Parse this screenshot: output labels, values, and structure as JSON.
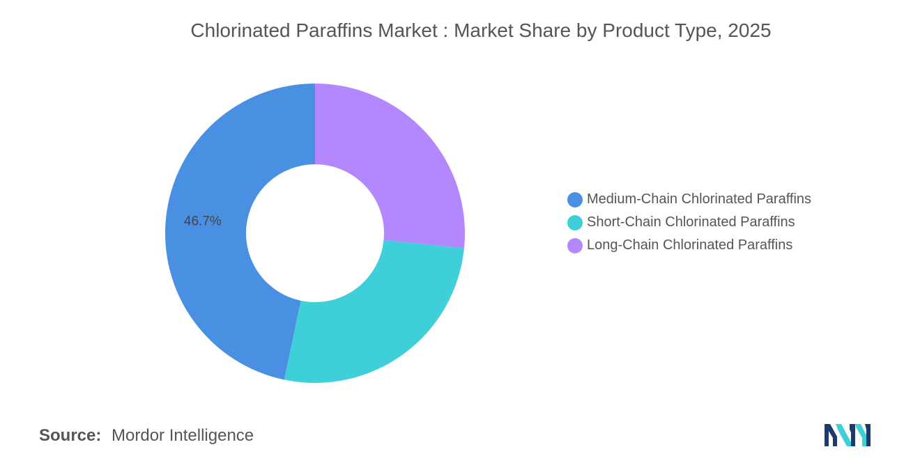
{
  "chart_data": {
    "type": "pie",
    "title": "Chlorinated Paraffins Market : Market Share by Product Type, 2025",
    "categories": [
      "Medium-Chain Chlorinated Paraffins",
      "Short-Chain Chlorinated Paraffins",
      "Long-Chain Chlorinated Paraffins"
    ],
    "values": [
      46.7,
      26.7,
      26.6
    ],
    "colors": [
      "#4a90e2",
      "#3ecfd9",
      "#b388ff"
    ],
    "data_labels": [
      "46.7%",
      "",
      ""
    ],
    "legend_position": "right",
    "donut": true
  },
  "source": {
    "label": "Source:",
    "text": "Mordor Intelligence"
  },
  "logo": {
    "icon": "mordor-intelligence-logo",
    "colors": [
      "#1d3a6e",
      "#3ecfd9"
    ]
  }
}
